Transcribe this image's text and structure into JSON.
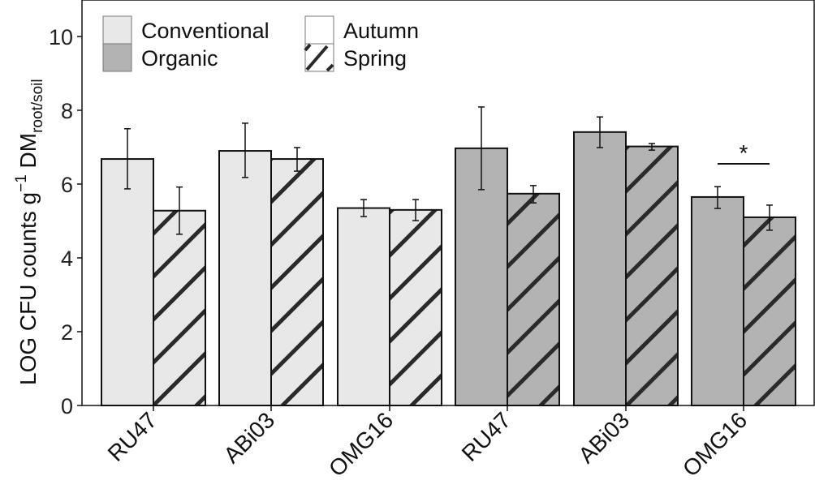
{
  "chart_data": {
    "type": "bar",
    "title": "",
    "xlabel": "",
    "ylabel": "LOG CFU counts g⁻¹ DM root/soil",
    "ylabel_parts": {
      "main": "LOG CFU counts g",
      "sup": "−1",
      "dm": " DM",
      "sub": "root/soil"
    },
    "ylim": [
      0,
      11
    ],
    "yticks": [
      0,
      2,
      4,
      6,
      8,
      10
    ],
    "categories": [
      "RU47",
      "ABi03",
      "OMG16",
      "RU47",
      "ABi03",
      "OMG16"
    ],
    "groups": [
      "Conventional",
      "Conventional",
      "Conventional",
      "Organic",
      "Organic",
      "Organic"
    ],
    "series": [
      {
        "name": "Autumn",
        "values": [
          6.68,
          6.9,
          5.35,
          6.97,
          7.41,
          5.65
        ],
        "err_upper": [
          7.5,
          7.65,
          5.58,
          8.09,
          7.82,
          5.93
        ],
        "err_lower": [
          5.87,
          6.18,
          5.12,
          5.85,
          6.99,
          5.34
        ]
      },
      {
        "name": "Spring",
        "values": [
          5.28,
          6.68,
          5.3,
          5.74,
          7.02,
          5.1
        ],
        "err_upper": [
          5.92,
          6.99,
          5.58,
          5.96,
          7.1,
          5.43
        ],
        "err_lower": [
          4.64,
          6.35,
          5.01,
          5.49,
          6.92,
          4.75
        ]
      }
    ],
    "annotations": [
      {
        "text": "*",
        "category_index": 5,
        "type": "significance-bracket"
      }
    ],
    "legend": {
      "position": "top-left inside",
      "fill_entries": [
        {
          "label": "Conventional",
          "color": "#e8e8e8"
        },
        {
          "label": "Organic",
          "color": "#b3b3b3"
        }
      ],
      "pattern_entries": [
        {
          "label": "Autumn",
          "pattern": "none"
        },
        {
          "label": "Spring",
          "pattern": "diagonal-hatch"
        }
      ]
    },
    "grid": false,
    "colors": {
      "conventional": "#e8e8e8",
      "organic": "#b3b3b3",
      "hatch": "#2a2a2a",
      "outline": "#111111"
    }
  }
}
